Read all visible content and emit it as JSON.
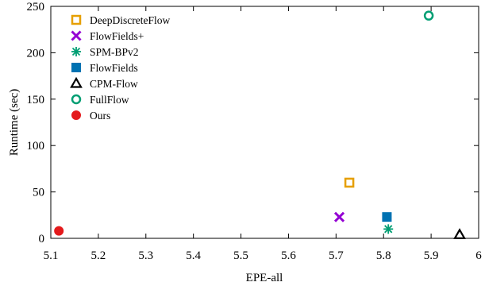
{
  "chart_data": {
    "type": "scatter",
    "xlabel": "EPE-all",
    "ylabel": "Runtime (sec)",
    "xlim": [
      5.1,
      6.0
    ],
    "ylim": [
      0,
      250
    ],
    "xticks": [
      5.1,
      5.2,
      5.3,
      5.4,
      5.5,
      5.6,
      5.7,
      5.8,
      5.9,
      6.0
    ],
    "xtick_labels": [
      "5.1",
      "5.2",
      "5.3",
      "5.4",
      "5.5",
      "5.6",
      "5.7",
      "5.8",
      "5.9",
      "6"
    ],
    "yticks": [
      0,
      50,
      100,
      150,
      200,
      250
    ],
    "ytick_labels": [
      "0",
      "50",
      "100",
      "150",
      "200",
      "250"
    ],
    "grid": false,
    "legend_position": "top-left",
    "series": [
      {
        "name": "DeepDiscreteFlow",
        "marker": "open-square",
        "color": "#E69F00",
        "x": 5.728,
        "y": 60
      },
      {
        "name": "FlowFields+",
        "marker": "cross",
        "color": "#9400D3",
        "x": 5.707,
        "y": 23
      },
      {
        "name": "SPM-BPv2",
        "marker": "asterisk",
        "color": "#009E73",
        "x": 5.81,
        "y": 10
      },
      {
        "name": "FlowFields",
        "marker": "filled-square",
        "color": "#0072B2",
        "x": 5.807,
        "y": 23
      },
      {
        "name": "CPM-Flow",
        "marker": "open-triangle",
        "color": "#000000",
        "x": 5.96,
        "y": 4
      },
      {
        "name": "FullFlow",
        "marker": "open-circle",
        "color": "#009E73",
        "x": 5.895,
        "y": 240
      },
      {
        "name": "Ours",
        "marker": "filled-circle",
        "color": "#E41A1C",
        "x": 5.117,
        "y": 8
      }
    ]
  }
}
